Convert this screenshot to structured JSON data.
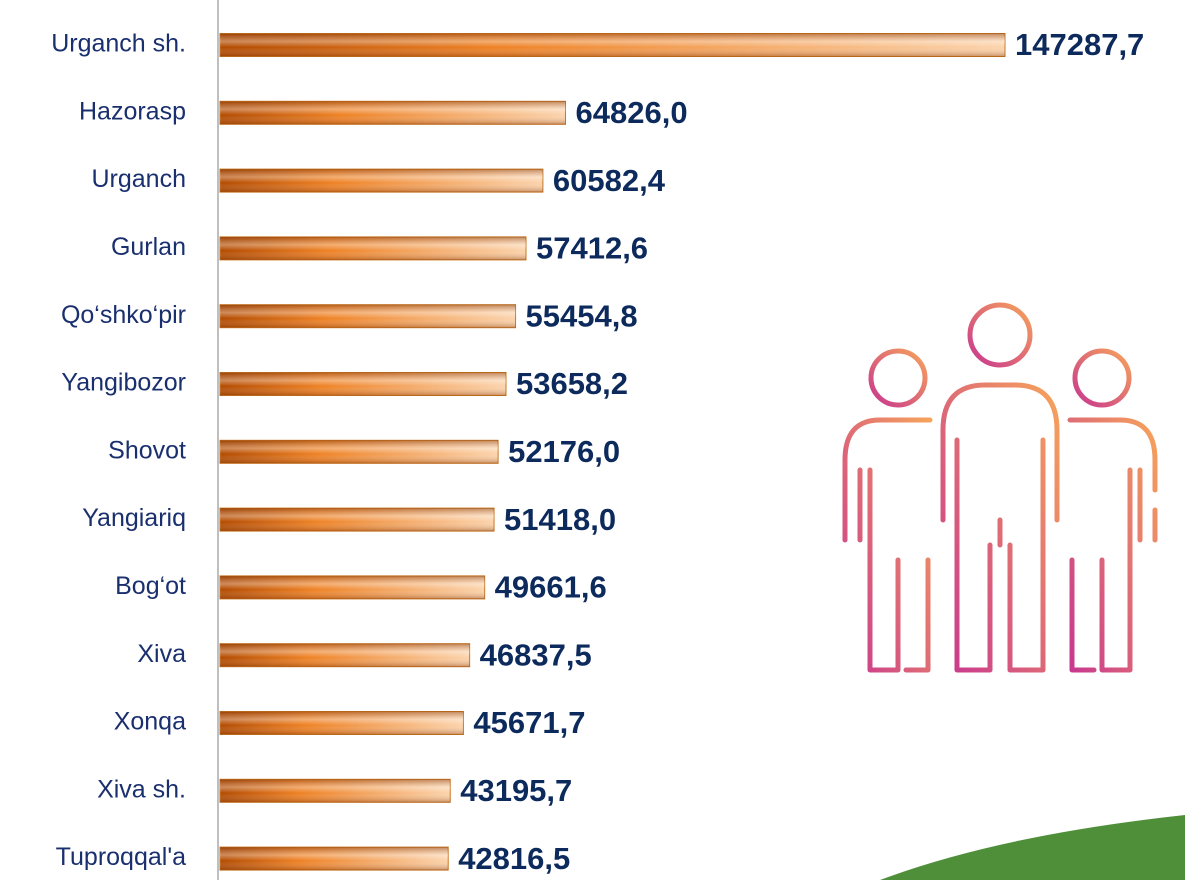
{
  "chart_data": {
    "type": "bar",
    "orientation": "horizontal",
    "categories": [
      "Urganch sh.",
      "Hazorasp",
      "Urganch",
      "Gurlan",
      "Qo‘shko‘pir",
      "Yangibozor",
      "Shovot",
      "Yangiariq",
      "Bog‘ot",
      "Xiva",
      "Xonqa",
      "Xiva sh.",
      "Tuproqqal'a"
    ],
    "values": [
      147287.7,
      64826.0,
      60582.4,
      57412.6,
      55454.8,
      53658.2,
      52176.0,
      51418.0,
      49661.6,
      46837.5,
      45671.7,
      43195.7,
      42816.5
    ],
    "value_labels": [
      "147287,7",
      "64826,0",
      "60582,4",
      "57412,6",
      "55454,8",
      "53658,2",
      "52176,0",
      "51418,0",
      "49661,6",
      "46837,5",
      "45671,7",
      "43195,7",
      "42816,5"
    ],
    "color": "#e07a1c"
  }
}
